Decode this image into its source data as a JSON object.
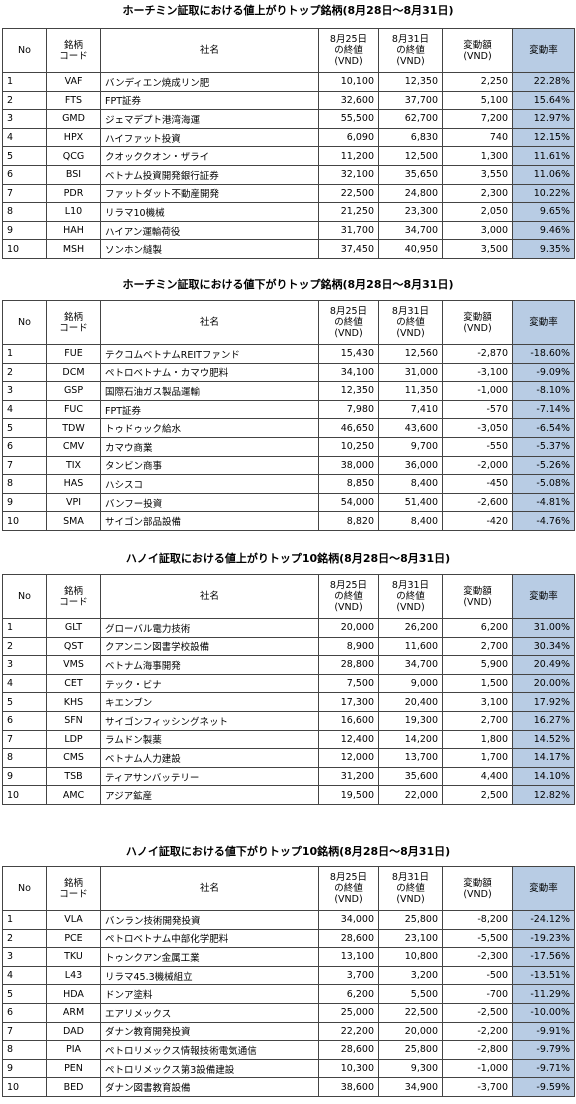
{
  "tables": [
    {
      "title": "ホーチミン証取における値上がりトップ銘柄(8月28日～8月31日)",
      "headers": [
        [
          "No"
        ],
        [
          "銘柄",
          "コード"
        ],
        [
          "社名"
        ],
        [
          "8月25日",
          "の終値",
          "(VND)"
        ],
        [
          "8月31日",
          "の終値",
          "(VND)"
        ],
        [
          "変動額",
          "(VND)"
        ],
        [
          "変動率"
        ]
      ],
      "rows": [
        [
          "1",
          "VAF",
          "バンディエン焼成リン肥",
          "10,100",
          "12,350",
          "2,250",
          "22.28%"
        ],
        [
          "2",
          "FTS",
          "FPT証券",
          "32,600",
          "37,700",
          "5,100",
          "15.64%"
        ],
        [
          "3",
          "GMD",
          "ジェマデプト港湾海運",
          "55,500",
          "62,700",
          "7,200",
          "12.97%"
        ],
        [
          "4",
          "HPX",
          "ハイファット投資",
          "6,090",
          "6,830",
          "740",
          "12.15%"
        ],
        [
          "5",
          "QCG",
          "クオッククオン・ザライ",
          "11,200",
          "12,500",
          "1,300",
          "11.61%"
        ],
        [
          "6",
          "BSI",
          "ベトナム投資開発銀行証券",
          "32,100",
          "35,650",
          "3,550",
          "11.06%"
        ],
        [
          "7",
          "PDR",
          "ファットダット不動産開発",
          "22,500",
          "24,800",
          "2,300",
          "10.22%"
        ],
        [
          "8",
          "L10",
          "リラマ10機械",
          "21,250",
          "23,300",
          "2,050",
          "9.65%"
        ],
        [
          "9",
          "HAH",
          "ハイアン運輸荷役",
          "31,700",
          "34,700",
          "3,000",
          "9.46%"
        ],
        [
          "10",
          "MSH",
          "ソンホン縫製",
          "37,450",
          "40,950",
          "3,500",
          "9.35%"
        ]
      ]
    },
    {
      "title": "ホーチミン証取における値下がりトップ銘柄(8月28日～8月31日)",
      "headers": [
        [
          "No"
        ],
        [
          "銘柄",
          "コード"
        ],
        [
          "社名"
        ],
        [
          "8月25日",
          "の終値",
          "(VND)"
        ],
        [
          "8月31日",
          "の終値",
          "(VND)"
        ],
        [
          "変動額",
          "(VND)"
        ],
        [
          "変動率"
        ]
      ],
      "rows": [
        [
          "1",
          "FUE",
          "テクコムベトナムREITファンド",
          "15,430",
          "12,560",
          "-2,870",
          "-18.60%"
        ],
        [
          "2",
          "DCM",
          "ペトロベトナム・カマウ肥料",
          "34,100",
          "31,000",
          "-3,100",
          "-9.09%"
        ],
        [
          "3",
          "GSP",
          "国際石油ガス製品運輸",
          "12,350",
          "11,350",
          "-1,000",
          "-8.10%"
        ],
        [
          "4",
          "FUC",
          "FPT証券",
          "7,980",
          "7,410",
          "-570",
          "-7.14%"
        ],
        [
          "5",
          "TDW",
          "トゥドゥック給水",
          "46,650",
          "43,600",
          "-3,050",
          "-6.54%"
        ],
        [
          "6",
          "CMV",
          "カマウ商業",
          "10,250",
          "9,700",
          "-550",
          "-5.37%"
        ],
        [
          "7",
          "TIX",
          "タンビン商事",
          "38,000",
          "36,000",
          "-2,000",
          "-5.26%"
        ],
        [
          "8",
          "HAS",
          "ハシスコ",
          "8,850",
          "8,400",
          "-450",
          "-5.08%"
        ],
        [
          "9",
          "VPI",
          "バンフー投資",
          "54,000",
          "51,400",
          "-2,600",
          "-4.81%"
        ],
        [
          "10",
          "SMA",
          "サイゴン部品設備",
          "8,820",
          "8,400",
          "-420",
          "-4.76%"
        ]
      ]
    },
    {
      "title": "ハノイ証取における値上がりトップ10銘柄(8月28日～8月31日)",
      "headers": [
        [
          "No"
        ],
        [
          "銘柄",
          "コード"
        ],
        [
          "社名"
        ],
        [
          "8月25日",
          "の終値",
          "(VND)"
        ],
        [
          "8月31日",
          "の終値",
          "(VND)"
        ],
        [
          "変動額",
          "(VND)"
        ],
        [
          "変動率"
        ]
      ],
      "rows": [
        [
          "1",
          "GLT",
          "グローバル電力技術",
          "20,000",
          "26,200",
          "6,200",
          "31.00%"
        ],
        [
          "2",
          "QST",
          "クアンニン図書学校設備",
          "8,900",
          "11,600",
          "2,700",
          "30.34%"
        ],
        [
          "3",
          "VMS",
          "ベトナム海事開発",
          "28,800",
          "34,700",
          "5,900",
          "20.49%"
        ],
        [
          "4",
          "CET",
          "テック・ビナ",
          "7,500",
          "9,000",
          "1,500",
          "20.00%"
        ],
        [
          "5",
          "KHS",
          "キエンブン",
          "17,300",
          "20,400",
          "3,100",
          "17.92%"
        ],
        [
          "6",
          "SFN",
          "サイゴンフィッシングネット",
          "16,600",
          "19,300",
          "2,700",
          "16.27%"
        ],
        [
          "7",
          "LDP",
          "ラムドン製薬",
          "12,400",
          "14,200",
          "1,800",
          "14.52%"
        ],
        [
          "8",
          "CMS",
          "ベトナム人力建設",
          "12,000",
          "13,700",
          "1,700",
          "14.17%"
        ],
        [
          "9",
          "TSB",
          "ティアサンバッテリー",
          "31,200",
          "35,600",
          "4,400",
          "14.10%"
        ],
        [
          "10",
          "AMC",
          "アジア鉱産",
          "19,500",
          "22,000",
          "2,500",
          "12.82%"
        ]
      ]
    },
    {
      "title": "ハノイ証取における値下がりトップ10銘柄(8月28日～8月31日)",
      "headers": [
        [
          "No"
        ],
        [
          "銘柄",
          "コード"
        ],
        [
          "社名"
        ],
        [
          "8月25日",
          "の終値",
          "(VND)"
        ],
        [
          "8月31日",
          "の終値",
          "(VND)"
        ],
        [
          "変動額",
          "(VND)"
        ],
        [
          "変動率"
        ]
      ],
      "rows": [
        [
          "1",
          "VLA",
          "バンラン技術開発投資",
          "34,000",
          "25,800",
          "-8,200",
          "-24.12%"
        ],
        [
          "2",
          "PCE",
          "ペトロベトナム中部化学肥料",
          "28,600",
          "23,100",
          "-5,500",
          "-19.23%"
        ],
        [
          "3",
          "TKU",
          "トゥンクアン金属工業",
          "13,100",
          "10,800",
          "-2,300",
          "-17.56%"
        ],
        [
          "4",
          "L43",
          "リラマ45.3機械組立",
          "3,700",
          "3,200",
          "-500",
          "-13.51%"
        ],
        [
          "5",
          "HDA",
          "ドンア塗料",
          "6,200",
          "5,500",
          "-700",
          "-11.29%"
        ],
        [
          "6",
          "ARM",
          "エアリメックス",
          "25,000",
          "22,500",
          "-2,500",
          "-10.00%"
        ],
        [
          "7",
          "DAD",
          "ダナン教育開発投資",
          "22,200",
          "20,000",
          "-2,200",
          "-9.91%"
        ],
        [
          "8",
          "PIA",
          "ペトロリメックス情報技術電気通信",
          "28,600",
          "25,800",
          "-2,800",
          "-9.79%"
        ],
        [
          "9",
          "PEN",
          "ペトロリメックス第3設備建設",
          "10,300",
          "9,300",
          "-1,000",
          "-9.71%"
        ],
        [
          "10",
          "BED",
          "ダナン図書教育設備",
          "38,600",
          "34,900",
          "-3,700",
          "-9.59%"
        ]
      ]
    }
  ]
}
